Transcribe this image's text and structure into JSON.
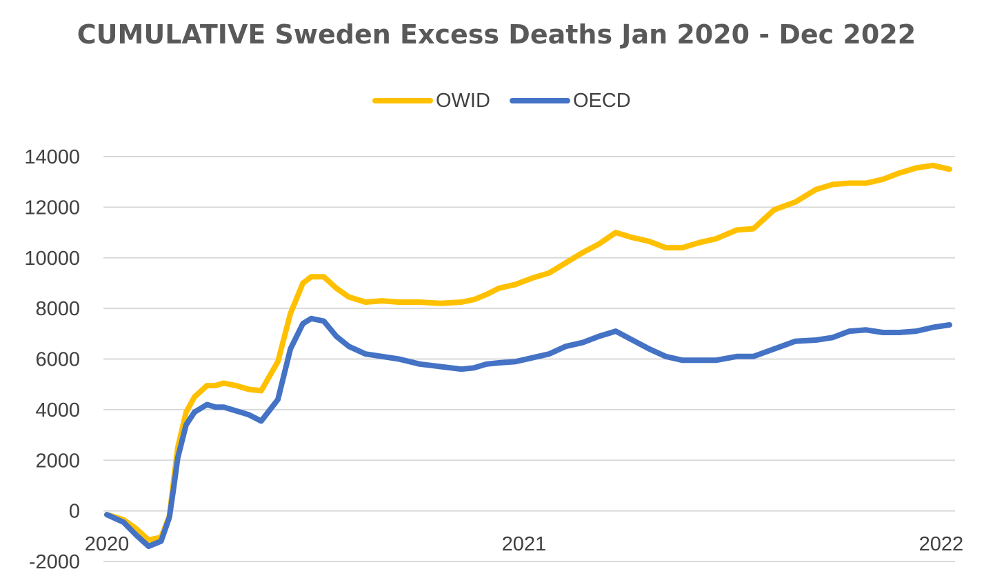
{
  "chart_data": {
    "type": "line",
    "title": "CUMULATIVE Sweden Excess Deaths Jan 2020 - Dec 2022",
    "xlabel": "",
    "ylabel": "",
    "ylim": [
      -2000,
      14000
    ],
    "y_ticks": [
      "14000",
      "12000",
      "10000",
      "8000",
      "6000",
      "4000",
      "2000",
      "0",
      "-2000"
    ],
    "x_ticks": [
      {
        "label": "2020",
        "value": 0
      },
      {
        "label": "2021",
        "value": 1
      },
      {
        "label": "2022",
        "value": 2
      }
    ],
    "xlim": [
      0,
      2.03
    ],
    "grid": true,
    "legend": "top",
    "series": [
      {
        "name": "OWID",
        "color": "#FFC000",
        "x": [
          0,
          0.04,
          0.07,
          0.1,
          0.13,
          0.15,
          0.16,
          0.17,
          0.19,
          0.21,
          0.24,
          0.26,
          0.28,
          0.31,
          0.34,
          0.37,
          0.41,
          0.44,
          0.47,
          0.49,
          0.52,
          0.55,
          0.58,
          0.62,
          0.66,
          0.7,
          0.75,
          0.8,
          0.85,
          0.88,
          0.91,
          0.94,
          0.98,
          1.02,
          1.06,
          1.1,
          1.14,
          1.18,
          1.22,
          1.26,
          1.3,
          1.34,
          1.38,
          1.42,
          1.46,
          1.51,
          1.55,
          1.6,
          1.65,
          1.7,
          1.74,
          1.78,
          1.82,
          1.86,
          1.9,
          1.94,
          1.98,
          2.02
        ],
        "values": [
          -150,
          -350,
          -700,
          -1150,
          -1050,
          -200,
          1200,
          2500,
          3900,
          4500,
          4950,
          4950,
          5050,
          4950,
          4800,
          4750,
          5900,
          7800,
          9000,
          9250,
          9250,
          8800,
          8450,
          8250,
          8300,
          8250,
          8250,
          8200,
          8250,
          8350,
          8550,
          8800,
          8950,
          9200,
          9400,
          9800,
          10200,
          10550,
          11000,
          10800,
          10650,
          10400,
          10400,
          10600,
          10750,
          11100,
          11150,
          11900,
          12200,
          12700,
          12900,
          12950,
          12950,
          13100,
          13350,
          13550,
          13650,
          13500
        ]
      },
      {
        "name": "OECD",
        "color": "#4472C4",
        "x": [
          0,
          0.04,
          0.07,
          0.1,
          0.13,
          0.15,
          0.16,
          0.17,
          0.19,
          0.21,
          0.24,
          0.26,
          0.28,
          0.31,
          0.34,
          0.37,
          0.41,
          0.44,
          0.47,
          0.49,
          0.52,
          0.55,
          0.58,
          0.62,
          0.66,
          0.7,
          0.75,
          0.8,
          0.85,
          0.88,
          0.91,
          0.94,
          0.98,
          1.02,
          1.06,
          1.1,
          1.14,
          1.18,
          1.22,
          1.26,
          1.3,
          1.34,
          1.38,
          1.42,
          1.46,
          1.51,
          1.55,
          1.6,
          1.65,
          1.7,
          1.74,
          1.78,
          1.82,
          1.86,
          1.9,
          1.94,
          1.98,
          2.02
        ],
        "values": [
          -150,
          -450,
          -950,
          -1400,
          -1200,
          -250,
          900,
          2100,
          3400,
          3900,
          4200,
          4100,
          4100,
          3950,
          3800,
          3550,
          4400,
          6400,
          7400,
          7600,
          7500,
          6900,
          6500,
          6200,
          6100,
          6000,
          5800,
          5700,
          5600,
          5650,
          5800,
          5850,
          5900,
          6050,
          6200,
          6500,
          6650,
          6900,
          7100,
          6750,
          6400,
          6100,
          5950,
          5950,
          5950,
          6100,
          6100,
          6400,
          6700,
          6750,
          6850,
          7100,
          7150,
          7050,
          7050,
          7100,
          7250,
          7350
        ]
      }
    ]
  }
}
